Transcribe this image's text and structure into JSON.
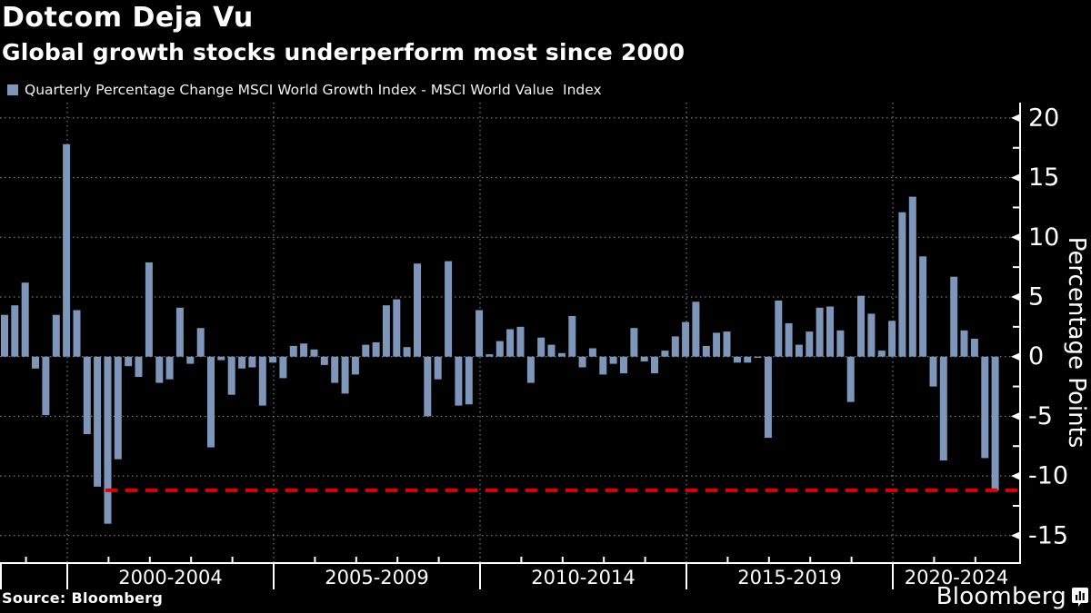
{
  "header": {
    "title": "Dotcom Deja Vu",
    "subtitle": "Global growth stocks underperform most since 2000"
  },
  "legend": {
    "label": "Quarterly Percentage Change MSCI World Growth Index - MSCI World Value  Index",
    "swatch_color": "#7D96B9"
  },
  "footer": {
    "source": "Source: Bloomberg",
    "brand": "Bloomberg"
  },
  "chart_data": {
    "type": "bar",
    "title": "Dotcom Deja Vu",
    "subtitle": "Global growth stocks underperform most since 2000",
    "series_name": "Quarterly Percentage Change MSCI World Growth Index - MSCI World Value  Index",
    "frequency": "quarterly",
    "x_start_quarter": "1998Q2",
    "x_end_quarter": "2022Q2",
    "values": [
      3.5,
      4.3,
      6.2,
      -1.0,
      -4.9,
      3.5,
      17.8,
      3.9,
      -6.5,
      -10.9,
      -14.0,
      -8.6,
      -0.8,
      -1.7,
      7.9,
      -2.2,
      -1.9,
      4.1,
      -0.6,
      2.4,
      -7.6,
      -0.3,
      -3.2,
      -1.0,
      -0.9,
      -4.1,
      -0.5,
      -1.8,
      0.9,
      1.1,
      0.6,
      -0.7,
      -2.2,
      -3.1,
      -1.5,
      1.0,
      1.2,
      4.3,
      4.8,
      0.8,
      7.8,
      -5.0,
      -1.9,
      8.0,
      -4.1,
      -4.0,
      3.9,
      0.2,
      1.3,
      2.3,
      2.5,
      -2.2,
      1.6,
      1.0,
      0.3,
      3.4,
      -0.9,
      0.7,
      -1.5,
      -0.6,
      -1.4,
      2.4,
      -0.4,
      -1.4,
      0.5,
      1.7,
      2.9,
      4.6,
      0.9,
      2.0,
      2.1,
      -0.5,
      -0.5,
      -0.1,
      -6.8,
      4.7,
      2.8,
      1.0,
      2.1,
      4.1,
      4.2,
      2.2,
      -3.8,
      5.1,
      3.6,
      0.5,
      3.0,
      12.1,
      13.4,
      8.4,
      -2.5,
      -8.7,
      6.7,
      2.2,
      1.5,
      -8.5,
      -11.2
    ],
    "x_groups": [
      "2000-2004",
      "2005-2009",
      "2010-2014",
      "2015-2019",
      "2020-2024"
    ],
    "x_group_boundary_years": [
      2000,
      2005,
      2010,
      2015,
      2020
    ],
    "y_axis": {
      "label": "Percentage Points",
      "major_ticks": [
        20,
        15,
        10,
        5,
        0,
        -5,
        -10,
        -15
      ],
      "minor_step": 2.5,
      "range": [
        -17.3,
        21.3
      ]
    },
    "red_line": {
      "value": -11.2,
      "style": "dashed",
      "color": "#DE0000"
    },
    "grid": {
      "horizontal": true,
      "vertical": true,
      "style": "dotted"
    },
    "legend_position": "top-left",
    "colors": {
      "bar": "#7D96B9",
      "background": "#000000",
      "axis": "#FFFFFF",
      "grid": "#909090",
      "text": "#FFFFFF"
    }
  }
}
